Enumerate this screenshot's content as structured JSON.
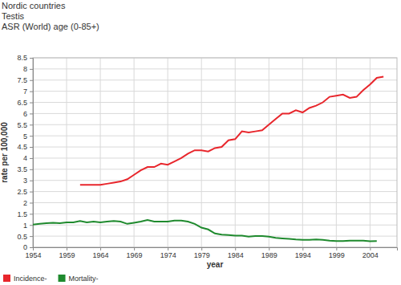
{
  "chart_data": {
    "type": "line",
    "title": "Nordic countries",
    "subtitle": [
      "Testis",
      "ASR (World) age (0-85+)"
    ],
    "x_label": "year",
    "y_label": "rate per 100,000",
    "xlim": [
      1954,
      2008
    ],
    "xticks": [
      1954,
      1959,
      1964,
      1969,
      1974,
      1979,
      1984,
      1989,
      1994,
      1999,
      2004
    ],
    "ylim": [
      0,
      8.5
    ],
    "yticks": [
      0,
      0.5,
      1,
      1.5,
      2,
      2.5,
      3,
      3.5,
      4,
      4.5,
      5,
      5.5,
      6,
      6.5,
      7,
      7.5,
      8,
      8.5
    ],
    "grid": true,
    "legend": "bottom-left",
    "series": [
      {
        "name": "Incidence-",
        "color": "#e8262c",
        "x": [
          1961,
          1962,
          1963,
          1964,
          1965,
          1966,
          1967,
          1968,
          1969,
          1970,
          1971,
          1972,
          1973,
          1974,
          1975,
          1976,
          1977,
          1978,
          1979,
          1980,
          1981,
          1982,
          1983,
          1984,
          1985,
          1986,
          1987,
          1988,
          1989,
          1990,
          1991,
          1992,
          1993,
          1994,
          1995,
          1996,
          1997,
          1998,
          1999,
          2000,
          2001,
          2002,
          2003,
          2004,
          2005,
          2006
        ],
        "values": [
          2.8,
          2.8,
          2.8,
          2.8,
          2.85,
          2.9,
          2.95,
          3.05,
          3.25,
          3.45,
          3.6,
          3.6,
          3.75,
          3.7,
          3.85,
          4.0,
          4.2,
          4.35,
          4.35,
          4.3,
          4.45,
          4.5,
          4.8,
          4.85,
          5.2,
          5.15,
          5.2,
          5.25,
          5.5,
          5.75,
          6.0,
          6.0,
          6.15,
          6.05,
          6.25,
          6.35,
          6.5,
          6.75,
          6.8,
          6.85,
          6.7,
          6.75,
          7.05,
          7.3,
          7.6,
          7.65
        ]
      },
      {
        "name": "Mortality-",
        "color": "#1f8a2e",
        "x": [
          1954,
          1955,
          1956,
          1957,
          1958,
          1959,
          1960,
          1961,
          1962,
          1963,
          1964,
          1965,
          1966,
          1967,
          1968,
          1969,
          1970,
          1971,
          1972,
          1973,
          1974,
          1975,
          1976,
          1977,
          1978,
          1979,
          1980,
          1981,
          1982,
          1983,
          1984,
          1985,
          1986,
          1987,
          1988,
          1989,
          1990,
          1991,
          1992,
          1993,
          1994,
          1995,
          1996,
          1997,
          1998,
          1999,
          2000,
          2001,
          2002,
          2003,
          2004,
          2005
        ],
        "values": [
          1.02,
          1.05,
          1.08,
          1.1,
          1.08,
          1.12,
          1.12,
          1.18,
          1.12,
          1.15,
          1.12,
          1.15,
          1.18,
          1.15,
          1.05,
          1.1,
          1.15,
          1.22,
          1.15,
          1.15,
          1.15,
          1.2,
          1.2,
          1.15,
          1.05,
          0.88,
          0.8,
          0.62,
          0.57,
          0.55,
          0.52,
          0.52,
          0.48,
          0.5,
          0.5,
          0.48,
          0.42,
          0.4,
          0.38,
          0.35,
          0.33,
          0.33,
          0.35,
          0.33,
          0.3,
          0.28,
          0.28,
          0.3,
          0.3,
          0.3,
          0.27,
          0.28
        ]
      }
    ]
  }
}
